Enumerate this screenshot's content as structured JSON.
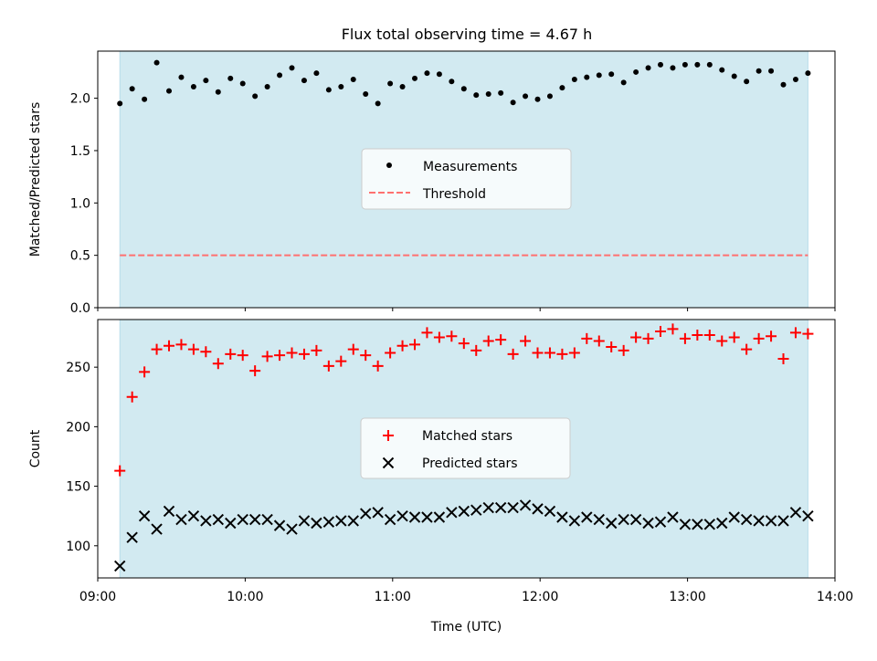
{
  "figure_title": "Flux total observing time = 4.67 h",
  "colors": {
    "shade": "#add8e6",
    "measurement": "#000000",
    "threshold": "#ff7070",
    "matched": "#ff0000",
    "predicted": "#000000",
    "axis": "#000000"
  },
  "chart_data": [
    {
      "type": "scatter",
      "title": "Flux total observing time = 4.67 h",
      "xlabel": "",
      "ylabel": "Matched/Predicted stars",
      "xlim": [
        "09:00",
        "14:00"
      ],
      "ylim": [
        0,
        2.45
      ],
      "yticks": [
        "0.0",
        "0.5",
        "1.0",
        "1.5",
        "2.0"
      ],
      "shaded_range": [
        "09:09",
        "13:49"
      ],
      "legend_position": "center",
      "legend": [
        "Measurements",
        "Threshold"
      ],
      "threshold": 0.5,
      "series": [
        {
          "name": "Measurements",
          "x": [
            "09:09",
            "09:14",
            "09:19",
            "09:24",
            "09:29",
            "09:34",
            "09:39",
            "09:44",
            "09:49",
            "09:54",
            "09:59",
            "10:04",
            "10:09",
            "10:14",
            "10:19",
            "10:24",
            "10:29",
            "10:34",
            "10:39",
            "10:44",
            "10:49",
            "10:54",
            "10:59",
            "11:04",
            "11:09",
            "11:14",
            "11:19",
            "11:24",
            "11:29",
            "11:34",
            "11:39",
            "11:44",
            "11:49",
            "11:54",
            "11:59",
            "12:04",
            "12:09",
            "12:14",
            "12:19",
            "12:24",
            "12:29",
            "12:34",
            "12:39",
            "12:44",
            "12:49",
            "12:54",
            "12:59",
            "13:04",
            "13:09",
            "13:14",
            "13:19",
            "13:24",
            "13:29",
            "13:34",
            "13:39",
            "13:44",
            "13:49"
          ],
          "values": [
            1.95,
            2.09,
            1.99,
            2.34,
            2.07,
            2.2,
            2.11,
            2.17,
            2.06,
            2.19,
            2.14,
            2.02,
            2.11,
            2.22,
            2.29,
            2.17,
            2.24,
            2.08,
            2.11,
            2.18,
            2.04,
            1.95,
            2.14,
            2.11,
            2.19,
            2.24,
            2.23,
            2.16,
            2.09,
            2.03,
            2.04,
            2.05,
            1.96,
            2.02,
            1.99,
            2.02,
            2.1,
            2.18,
            2.2,
            2.22,
            2.23,
            2.15,
            2.25,
            2.29,
            2.32,
            2.29,
            2.32,
            2.32,
            2.32,
            2.27,
            2.21,
            2.16,
            2.26,
            2.26,
            2.13,
            2.18,
            2.24
          ]
        }
      ]
    },
    {
      "type": "scatter",
      "title": "",
      "xlabel": "Time (UTC)",
      "ylabel": "Count",
      "xlim": [
        "09:00",
        "14:00"
      ],
      "xticks": [
        "09:00",
        "10:00",
        "11:00",
        "12:00",
        "13:00",
        "14:00"
      ],
      "ylim": [
        73,
        290
      ],
      "yticks": [
        "100",
        "150",
        "200",
        "250"
      ],
      "shaded_range": [
        "09:09",
        "13:49"
      ],
      "legend_position": "center",
      "legend": [
        "Matched stars",
        "Predicted stars"
      ],
      "series": [
        {
          "name": "Matched stars",
          "x": [
            "09:09",
            "09:14",
            "09:19",
            "09:24",
            "09:29",
            "09:34",
            "09:39",
            "09:44",
            "09:49",
            "09:54",
            "09:59",
            "10:04",
            "10:09",
            "10:14",
            "10:19",
            "10:24",
            "10:29",
            "10:34",
            "10:39",
            "10:44",
            "10:49",
            "10:54",
            "10:59",
            "11:04",
            "11:09",
            "11:14",
            "11:19",
            "11:24",
            "11:29",
            "11:34",
            "11:39",
            "11:44",
            "11:49",
            "11:54",
            "11:59",
            "12:04",
            "12:09",
            "12:14",
            "12:19",
            "12:24",
            "12:29",
            "12:34",
            "12:39",
            "12:44",
            "12:49",
            "12:54",
            "12:59",
            "13:04",
            "13:09",
            "13:14",
            "13:19",
            "13:24",
            "13:29",
            "13:34",
            "13:39",
            "13:44",
            "13:49"
          ],
          "values": [
            163,
            225,
            246,
            265,
            268,
            269,
            265,
            263,
            253,
            261,
            260,
            247,
            259,
            260,
            262,
            261,
            264,
            251,
            255,
            265,
            260,
            251,
            262,
            268,
            269,
            279,
            275,
            276,
            270,
            264,
            272,
            273,
            261,
            272,
            262,
            262,
            261,
            262,
            274,
            272,
            267,
            264,
            275,
            274,
            280,
            282,
            274,
            277,
            277,
            272,
            275,
            265,
            274,
            276,
            257,
            279,
            278
          ]
        },
        {
          "name": "Predicted stars",
          "x": [
            "09:09",
            "09:14",
            "09:19",
            "09:24",
            "09:29",
            "09:34",
            "09:39",
            "09:44",
            "09:49",
            "09:54",
            "09:59",
            "10:04",
            "10:09",
            "10:14",
            "10:19",
            "10:24",
            "10:29",
            "10:34",
            "10:39",
            "10:44",
            "10:49",
            "10:54",
            "10:59",
            "11:04",
            "11:09",
            "11:14",
            "11:19",
            "11:24",
            "11:29",
            "11:34",
            "11:39",
            "11:44",
            "11:49",
            "11:54",
            "11:59",
            "12:04",
            "12:09",
            "12:14",
            "12:19",
            "12:24",
            "12:29",
            "12:34",
            "12:39",
            "12:44",
            "12:49",
            "12:54",
            "12:59",
            "13:04",
            "13:09",
            "13:14",
            "13:19",
            "13:24",
            "13:29",
            "13:34",
            "13:39",
            "13:44",
            "13:49"
          ],
          "values": [
            83,
            107,
            125,
            114,
            129,
            122,
            125,
            121,
            122,
            119,
            122,
            122,
            122,
            117,
            114,
            121,
            119,
            120,
            121,
            121,
            127,
            128,
            122,
            125,
            124,
            124,
            124,
            128,
            129,
            130,
            132,
            132,
            132,
            134,
            131,
            129,
            124,
            121,
            124,
            122,
            119,
            122,
            122,
            119,
            120,
            124,
            118,
            118,
            118,
            119,
            124,
            122,
            121,
            121,
            121,
            128,
            125
          ]
        }
      ]
    }
  ]
}
